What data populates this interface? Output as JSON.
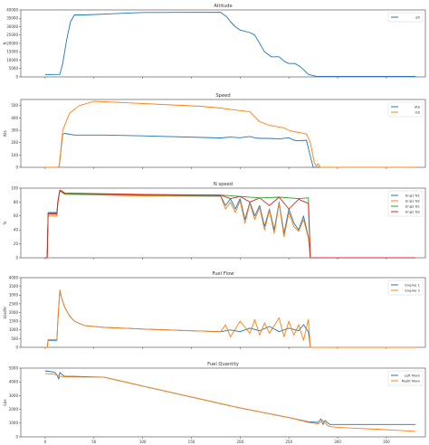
{
  "chart_data": [
    {
      "type": "line",
      "title": "Altitude",
      "ylabel": "ft",
      "xlim": [
        -25,
        390
      ],
      "ylim": [
        0,
        40000
      ],
      "yticks": [
        0,
        5000,
        10000,
        15000,
        20000,
        25000,
        30000,
        35000,
        40000
      ],
      "ytick_labels": [
        "0",
        "5000",
        "10000",
        "15000",
        "20000",
        "25000",
        "30000",
        "35000",
        "40000"
      ],
      "legend": "top-right",
      "series": [
        {
          "name": "alt",
          "color": "#1f77b4",
          "x": [
            0,
            15,
            18,
            22,
            26,
            30,
            40,
            100,
            180,
            186,
            190,
            195,
            200,
            210,
            215,
            220,
            225,
            232,
            240,
            246,
            250,
            256,
            262,
            270,
            278,
            290,
            300,
            320,
            380
          ],
          "y": [
            1400,
            1500,
            8000,
            22000,
            33000,
            37000,
            37000,
            38500,
            38600,
            36000,
            33000,
            30000,
            28000,
            26500,
            25000,
            20000,
            15000,
            12000,
            12000,
            9000,
            8000,
            8000,
            6000,
            1500,
            300,
            300,
            300,
            300,
            300
          ]
        }
      ]
    },
    {
      "type": "line",
      "title": "Speed",
      "ylabel": "Kts",
      "xlim": [
        -25,
        390
      ],
      "ylim": [
        0,
        550
      ],
      "yticks": [
        0,
        100,
        200,
        300,
        400,
        500
      ],
      "ytick_labels": [
        "0",
        "100",
        "200",
        "300",
        "400",
        "500"
      ],
      "legend": "top-right",
      "series": [
        {
          "name": "IAS",
          "color": "#1f77b4",
          "x": [
            0,
            14,
            15,
            18,
            20,
            30,
            60,
            100,
            180,
            190,
            200,
            205,
            210,
            215,
            220,
            230,
            240,
            250,
            255,
            260,
            268,
            272,
            275,
            280,
            290,
            380
          ],
          "y": [
            0,
            0,
            50,
            270,
            275,
            262,
            262,
            255,
            238,
            245,
            240,
            245,
            250,
            240,
            235,
            235,
            230,
            240,
            220,
            215,
            220,
            90,
            0,
            0,
            0,
            0
          ]
        },
        {
          "name": "GS",
          "color": "#ff7f0e",
          "x": [
            0,
            14,
            15,
            18,
            25,
            35,
            50,
            80,
            120,
            160,
            180,
            190,
            200,
            210,
            215,
            220,
            230,
            245,
            250,
            255,
            262,
            268,
            272,
            276,
            278,
            280,
            282,
            290,
            380
          ],
          "y": [
            0,
            0,
            50,
            300,
            440,
            500,
            535,
            525,
            510,
            495,
            480,
            470,
            460,
            450,
            410,
            370,
            340,
            320,
            300,
            290,
            280,
            270,
            200,
            40,
            10,
            30,
            0,
            0,
            0
          ]
        }
      ]
    },
    {
      "type": "line",
      "title": "N speed",
      "ylabel": "%",
      "xlim": [
        -25,
        390
      ],
      "ylim": [
        0,
        100
      ],
      "yticks": [
        0,
        20,
        40,
        60,
        80,
        100
      ],
      "ytick_labels": [
        "0",
        "20",
        "40",
        "60",
        "80",
        "100"
      ],
      "legend": "top-right",
      "series": [
        {
          "name": "Eng1 N1",
          "color": "#1f77b4",
          "x": [
            0,
            2,
            3,
            12,
            13,
            15,
            17,
            20,
            60,
            100,
            180,
            185,
            190,
            195,
            200,
            205,
            210,
            215,
            220,
            225,
            230,
            235,
            240,
            245,
            250,
            255,
            260,
            265,
            270,
            272,
            290,
            380
          ],
          "y": [
            0,
            0,
            65,
            65,
            80,
            97,
            95,
            92,
            91,
            90,
            89,
            75,
            85,
            70,
            85,
            55,
            80,
            60,
            75,
            45,
            70,
            40,
            80,
            35,
            70,
            50,
            40,
            60,
            30,
            0,
            0,
            0
          ]
        },
        {
          "name": "Eng1 N2",
          "color": "#ff7f0e",
          "x": [
            0,
            2,
            3,
            12,
            13,
            15,
            17,
            20,
            60,
            100,
            180,
            185,
            190,
            195,
            200,
            205,
            210,
            215,
            220,
            225,
            230,
            235,
            240,
            245,
            250,
            255,
            260,
            265,
            270,
            272,
            290,
            380
          ],
          "y": [
            0,
            0,
            60,
            60,
            78,
            96,
            94,
            91,
            90,
            89,
            88,
            70,
            80,
            65,
            82,
            50,
            78,
            55,
            72,
            40,
            68,
            35,
            78,
            30,
            65,
            45,
            38,
            55,
            28,
            0,
            0,
            0
          ]
        },
        {
          "name": "Eng2 N1",
          "color": "#2ca02c",
          "x": [
            0,
            2,
            3,
            12,
            13,
            15,
            17,
            20,
            60,
            100,
            180,
            200,
            220,
            240,
            260,
            270,
            272,
            290,
            380
          ],
          "y": [
            0,
            0,
            64,
            64,
            80,
            97,
            95,
            92,
            91,
            90,
            90,
            88,
            86,
            87,
            85,
            86,
            0,
            0,
            0
          ]
        },
        {
          "name": "Eng2 N2",
          "color": "#d62728",
          "x": [
            0,
            2,
            3,
            12,
            13,
            15,
            17,
            20,
            60,
            100,
            180,
            190,
            200,
            210,
            220,
            230,
            240,
            250,
            260,
            270,
            272,
            290,
            380
          ],
          "y": [
            0,
            0,
            63,
            63,
            80,
            97,
            96,
            93,
            92,
            91,
            90,
            85,
            88,
            80,
            86,
            75,
            87,
            70,
            84,
            78,
            0,
            0,
            0
          ]
        }
      ]
    },
    {
      "type": "line",
      "title": "Fuel Flow",
      "ylabel": "Lbs/Hr",
      "xlim": [
        -25,
        390
      ],
      "ylim": [
        0,
        4000
      ],
      "yticks": [
        0,
        500,
        1000,
        1500,
        2000,
        2500,
        3000,
        3500,
        4000
      ],
      "ytick_labels": [
        "0",
        "500",
        "1000",
        "1500",
        "2000",
        "2500",
        "3000",
        "3500",
        "4000"
      ],
      "legend": "top-right",
      "series": [
        {
          "name": "Engine 1",
          "color": "#1f77b4",
          "x": [
            0,
            2,
            3,
            12,
            13,
            15,
            17,
            20,
            25,
            30,
            40,
            60,
            100,
            150,
            180,
            190,
            200,
            210,
            220,
            230,
            240,
            250,
            260,
            265,
            270,
            272,
            290,
            380
          ],
          "y": [
            0,
            0,
            400,
            400,
            1500,
            3250,
            2800,
            2300,
            1800,
            1500,
            1250,
            1150,
            1050,
            950,
            900,
            1000,
            900,
            1100,
            950,
            1200,
            900,
            1100,
            950,
            1300,
            900,
            0,
            0,
            0
          ]
        },
        {
          "name": "Engine 2",
          "color": "#ff7f0e",
          "x": [
            0,
            2,
            3,
            12,
            13,
            15,
            17,
            20,
            25,
            30,
            40,
            60,
            100,
            150,
            180,
            185,
            190,
            200,
            210,
            215,
            220,
            225,
            230,
            240,
            245,
            250,
            255,
            260,
            265,
            270,
            272,
            290,
            380
          ],
          "y": [
            0,
            0,
            450,
            450,
            1500,
            3300,
            2800,
            2300,
            1800,
            1500,
            1250,
            1150,
            1050,
            950,
            900,
            1300,
            600,
            1500,
            800,
            1600,
            700,
            1400,
            800,
            1700,
            600,
            1500,
            700,
            1300,
            400,
            1600,
            0,
            0,
            0
          ]
        }
      ]
    },
    {
      "type": "line",
      "title": "Fuel Quantity",
      "ylabel": "Lbs",
      "xlim": [
        -25,
        390
      ],
      "ylim": [
        0,
        5000
      ],
      "yticks": [
        0,
        1000,
        2000,
        3000,
        4000,
        5000
      ],
      "ytick_labels": [
        "0",
        "1000",
        "2000",
        "3000",
        "4000",
        "5000"
      ],
      "xticks": [
        0,
        50,
        100,
        150,
        200,
        250,
        300,
        350
      ],
      "xtick_labels": [
        "0",
        "50",
        "100",
        "150",
        "200",
        "250",
        "300",
        "350"
      ],
      "legend": "top-right",
      "series": [
        {
          "name": "Left Main",
          "color": "#1f77b4",
          "x": [
            0,
            10,
            12,
            14,
            15,
            16,
            20,
            30,
            40,
            60,
            100,
            150,
            200,
            250,
            270,
            280,
            283,
            285,
            287,
            290,
            292,
            300,
            380
          ],
          "y": [
            4800,
            4700,
            4500,
            4200,
            4700,
            4600,
            4400,
            4400,
            4380,
            4350,
            3700,
            2900,
            2100,
            1400,
            1100,
            1050,
            1300,
            900,
            1200,
            1000,
            900,
            900,
            900
          ]
        },
        {
          "name": "Right Main",
          "color": "#ff7f0e",
          "x": [
            0,
            10,
            15,
            20,
            30,
            40,
            60,
            100,
            150,
            200,
            250,
            270,
            280,
            285,
            290,
            292,
            300,
            320,
            340,
            360,
            380
          ],
          "y": [
            4600,
            4550,
            4400,
            4370,
            4360,
            4350,
            4350,
            3700,
            2900,
            2100,
            1400,
            1050,
            950,
            1200,
            800,
            750,
            700,
            620,
            560,
            480,
            400
          ]
        }
      ]
    }
  ]
}
